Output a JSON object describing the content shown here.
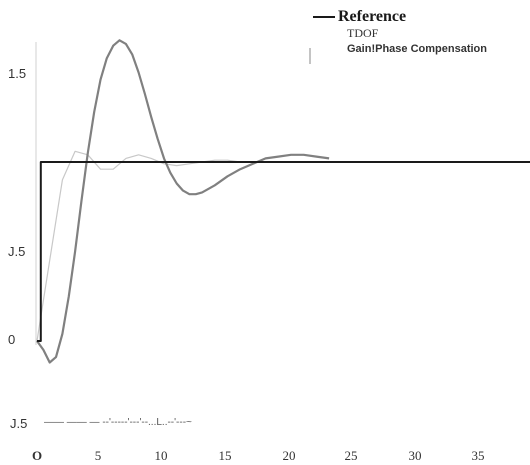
{
  "chart_data": {
    "type": "line",
    "legend": {
      "position": "top-right",
      "entries": [
        "Reference",
        "TDOF",
        "Gain!Phase Compensation"
      ]
    },
    "y_tick_labels": [
      "1.5",
      "J.5",
      "0"
    ],
    "y_tick_values": [
      1.5,
      0.5,
      0
    ],
    "x_tick_labels": [
      "O",
      "5",
      "10",
      "15",
      "20",
      "25",
      "30",
      "35"
    ],
    "x_tick_values": [
      0,
      5,
      10,
      15,
      20,
      25,
      30,
      35
    ],
    "xlim": [
      0,
      40
    ],
    "ylim": [
      -0.15,
      1.75
    ],
    "grid": false,
    "series": [
      {
        "name": "Reference",
        "color": "#1a1a1a",
        "x": [
          0,
          0.3,
          0.3,
          40
        ],
        "y": [
          0,
          0,
          1,
          1
        ]
      },
      {
        "name": "TDOF",
        "color": "#c8c8c8",
        "x": [
          0,
          1,
          2,
          3,
          4,
          5,
          6,
          7,
          8,
          9,
          10,
          11,
          12,
          13,
          14,
          15,
          16,
          17,
          18,
          19,
          20,
          21,
          22,
          23
        ],
        "y": [
          0,
          0.45,
          0.9,
          1.06,
          1.04,
          0.96,
          0.96,
          1.02,
          1.04,
          1.02,
          0.99,
          0.98,
          0.99,
          1.0,
          1.01,
          1.01,
          1.0,
          1.0,
          1.0,
          1.0,
          1.0,
          1.0,
          1.0,
          1.0
        ]
      },
      {
        "name": "Gain!Phase Compensation",
        "color": "#808080",
        "x": [
          0,
          0.5,
          1,
          1.5,
          2,
          2.5,
          3,
          3.5,
          4,
          4.5,
          5,
          5.5,
          6,
          6.5,
          7,
          7.5,
          8,
          8.5,
          9,
          9.5,
          10,
          10.5,
          11,
          11.5,
          12,
          12.5,
          13,
          14,
          15,
          16,
          17,
          18,
          19,
          20,
          21,
          22,
          23
        ],
        "y": [
          0,
          -0.05,
          -0.12,
          -0.09,
          0.04,
          0.25,
          0.5,
          0.78,
          1.05,
          1.28,
          1.46,
          1.58,
          1.65,
          1.68,
          1.66,
          1.6,
          1.5,
          1.38,
          1.25,
          1.13,
          1.02,
          0.94,
          0.88,
          0.84,
          0.82,
          0.82,
          0.83,
          0.87,
          0.92,
          0.96,
          0.99,
          1.02,
          1.03,
          1.04,
          1.04,
          1.03,
          1.02
        ]
      }
    ],
    "bottom_row": {
      "y_label": "J.5",
      "artifact_text": "——  ——  — --'-----'---'--...L..--'---~"
    }
  }
}
